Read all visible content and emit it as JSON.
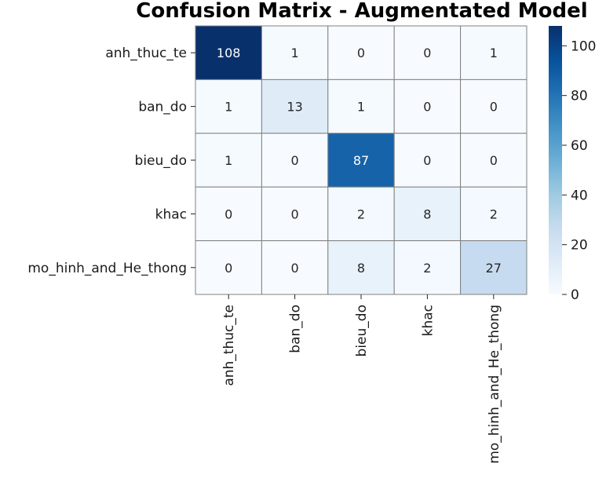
{
  "chart_data": {
    "type": "heatmap",
    "title": "Confusion Matrix - Augmentated Model",
    "xlabel": "",
    "ylabel": "",
    "row_labels": [
      "anh_thuc_te",
      "ban_do",
      "bieu_do",
      "khac",
      "mo_hinh_and_He_thong"
    ],
    "col_labels": [
      "anh_thuc_te",
      "ban_do",
      "bieu_do",
      "khac",
      "mo_hinh_and_He_thong"
    ],
    "values": [
      [
        108,
        1,
        0,
        0,
        1
      ],
      [
        1,
        13,
        1,
        0,
        0
      ],
      [
        1,
        0,
        87,
        0,
        0
      ],
      [
        0,
        0,
        2,
        8,
        2
      ],
      [
        0,
        0,
        8,
        2,
        27
      ]
    ],
    "colormap": "Blues",
    "vmin": 0,
    "vmax": 108,
    "colorbar_ticks": [
      0,
      20,
      40,
      60,
      80,
      100
    ],
    "grid": true,
    "grid_color": "#808080"
  }
}
